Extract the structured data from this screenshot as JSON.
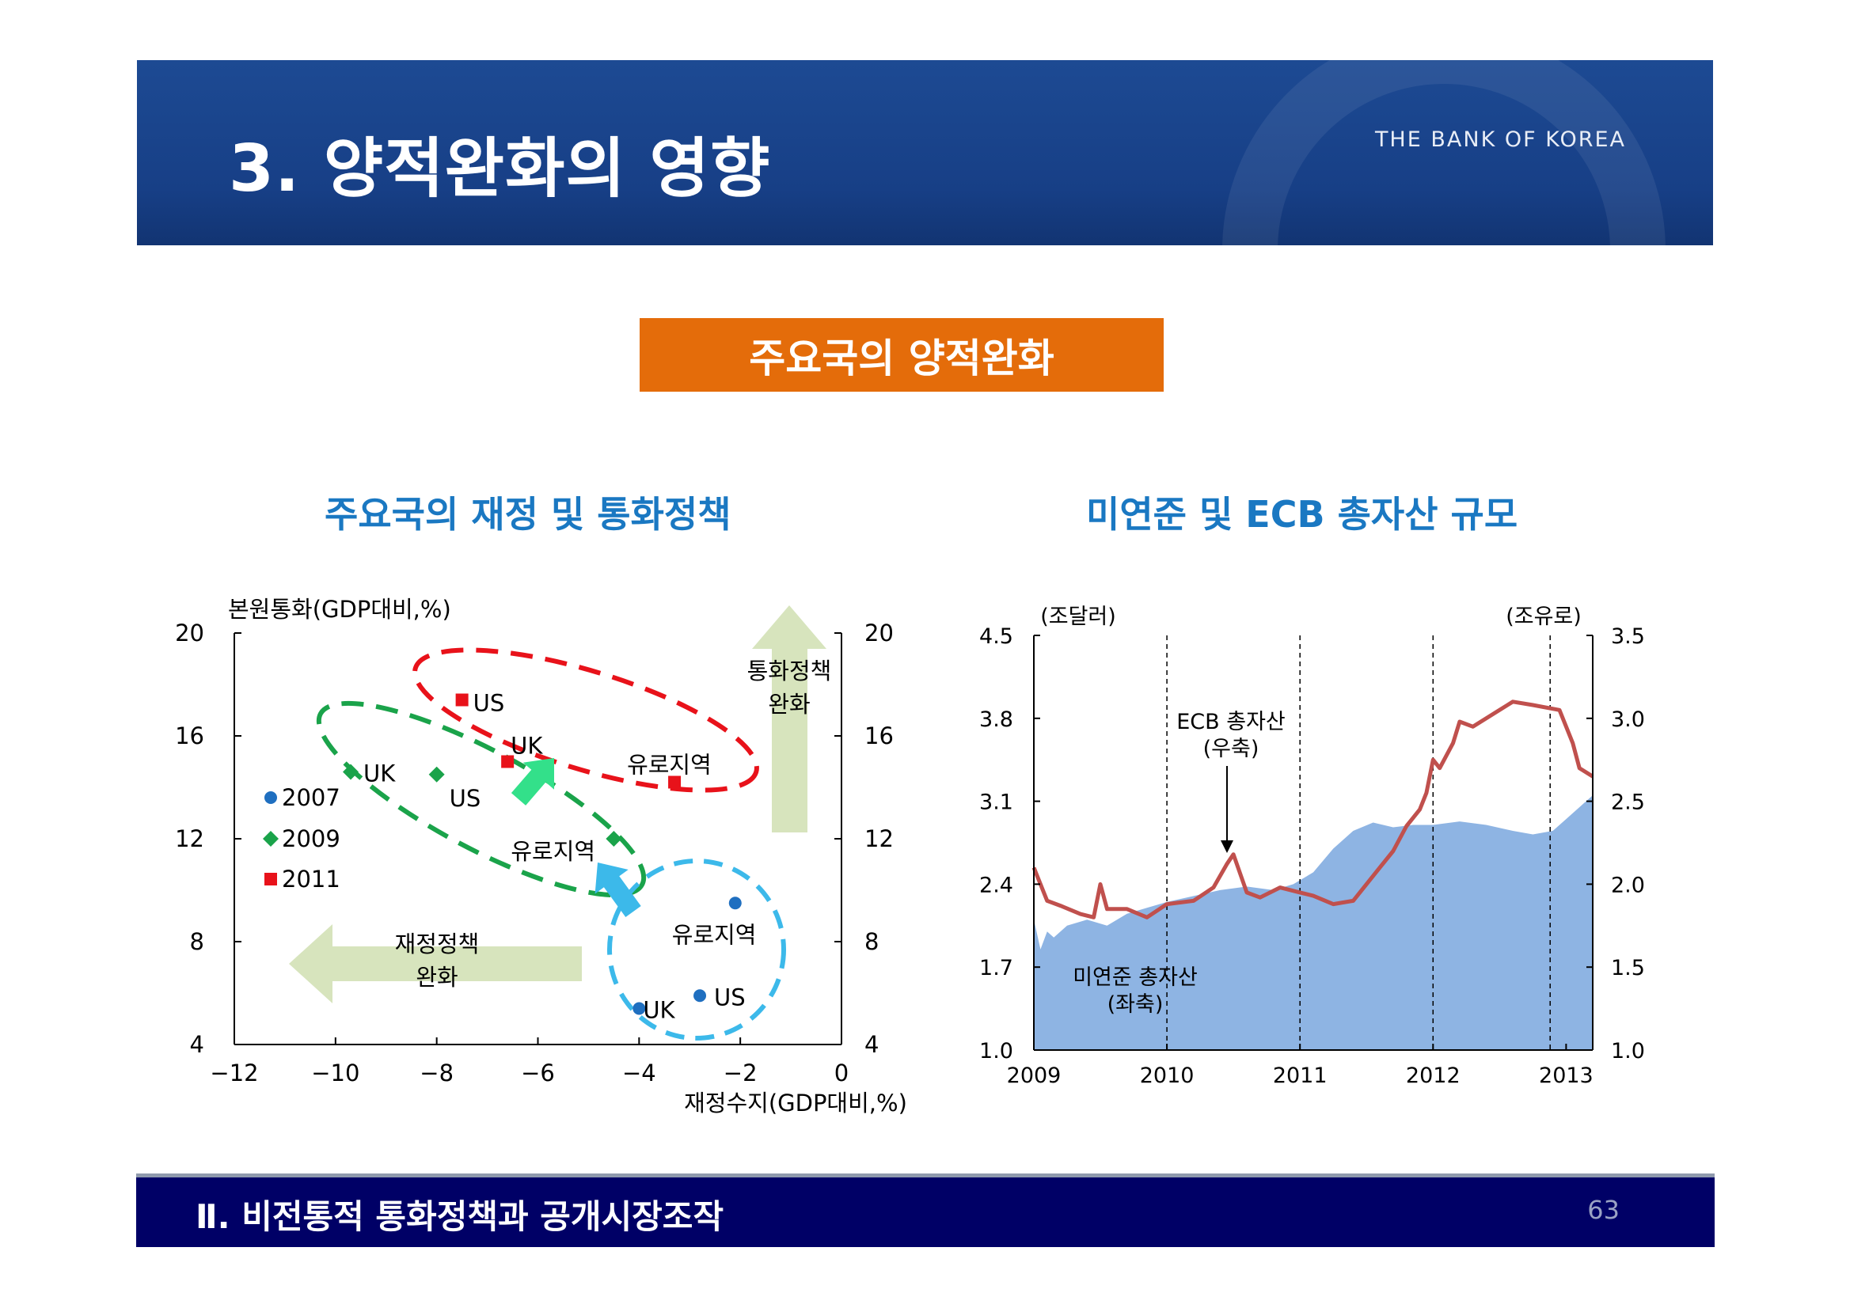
{
  "header": {
    "title": "3. 양적완화의 영향",
    "bank_name": "THE BANK OF KOREA"
  },
  "section_title": "주요국의 양적완화",
  "footer": {
    "text": "Ⅱ. 비전통적 통화정책과 공개시장조작",
    "page": "63"
  },
  "colors": {
    "header_bg": "#173f86",
    "section_bg": "#e46c0a",
    "chart_title": "#1a78c2",
    "footer_bg": "#000066",
    "y2007": "#1f6fc0",
    "y2009": "#1aa34a",
    "y2011": "#e8121a",
    "fed_area": "#8eb4e3",
    "ecb_line": "#c0504d",
    "arrow_green": "#d7e4bd",
    "arrow_small_green": "#33e08a",
    "arrow_small_blue": "#3cb9ea"
  },
  "chart_data": [
    {
      "type": "scatter",
      "title": "주요국의 재정 및 통화정책",
      "xlabel": "재정수지(GDP대비,%)",
      "ylabel": "본원통화(GDP대비,%)",
      "xlim": [
        -12,
        0
      ],
      "ylim": [
        4,
        20
      ],
      "x_ticks": [
        -12,
        -10,
        -8,
        -6,
        -4,
        -2,
        0
      ],
      "x_tick_labels": [
        "−12",
        "−10",
        "−8",
        "−6",
        "−4",
        "−2",
        "0"
      ],
      "y_ticks": [
        4,
        8,
        12,
        16,
        20
      ],
      "y_tick_labels": [
        "4",
        "8",
        "12",
        "16",
        "20"
      ],
      "y2_tick_labels": [
        "4",
        "8",
        "12",
        "16",
        "20"
      ],
      "legend": [
        "2007",
        "2009",
        "2011"
      ],
      "series": [
        {
          "name": "2007",
          "points": [
            {
              "label": "UK",
              "x": -4.0,
              "y": 5.4
            },
            {
              "label": "US",
              "x": -2.8,
              "y": 5.9
            },
            {
              "label": "유로지역",
              "x": -2.1,
              "y": 9.5
            }
          ]
        },
        {
          "name": "2009",
          "points": [
            {
              "label": "UK",
              "x": -9.7,
              "y": 14.6
            },
            {
              "label": "US",
              "x": -8.0,
              "y": 14.5
            },
            {
              "label": "유로지역",
              "x": -4.5,
              "y": 12.0
            }
          ]
        },
        {
          "name": "2011",
          "points": [
            {
              "label": "US",
              "x": -7.5,
              "y": 17.4
            },
            {
              "label": "UK",
              "x": -6.6,
              "y": 15.0
            },
            {
              "label": "유로지역",
              "x": -3.3,
              "y": 14.2
            }
          ]
        }
      ],
      "annotations": {
        "monetary_label_1": "통화정책",
        "monetary_label_2": "완화",
        "fiscal_label_1": "재정정책",
        "fiscal_label_2": "완화"
      }
    },
    {
      "type": "area",
      "title": "미연준 및 ECB 총자산 규모",
      "x_tick_labels": [
        "2009",
        "2010",
        "2011",
        "2012",
        "2013"
      ],
      "x_range": [
        2009.0,
        2013.2
      ],
      "y_left_label": "(조달러)",
      "y_right_label": "(조유로)",
      "y_left_ticks": [
        1.0,
        1.7,
        2.4,
        3.1,
        3.8,
        4.5
      ],
      "y_left_tick_labels": [
        "1.0",
        "1.7",
        "2.4",
        "3.1",
        "3.8",
        "4.5"
      ],
      "y_right_ticks": [
        1.0,
        1.5,
        2.0,
        2.5,
        3.0,
        3.5
      ],
      "y_right_tick_labels": [
        "1.0",
        "1.5",
        "2.0",
        "2.5",
        "3.0",
        "3.5"
      ],
      "ylim_left": [
        1.0,
        4.5
      ],
      "ylim_right": [
        1.0,
        3.5
      ],
      "vlines": [
        2010.0,
        2011.0,
        2012.0,
        2012.88
      ],
      "fed_label_1": "미연준 총자산",
      "fed_label_2": "(좌축)",
      "ecb_label_1": "ECB 총자산",
      "ecb_label_2": "(우축)",
      "series": [
        {
          "name": "미연준 총자산",
          "axis": "left",
          "x": [
            2009.0,
            2009.05,
            2009.1,
            2009.15,
            2009.25,
            2009.4,
            2009.55,
            2009.7,
            2009.85,
            2010.0,
            2010.2,
            2010.4,
            2010.6,
            2010.8,
            2010.95,
            2011.1,
            2011.25,
            2011.4,
            2011.55,
            2011.7,
            2011.85,
            2012.0,
            2012.2,
            2012.4,
            2012.6,
            2012.75,
            2012.9,
            2013.0,
            2013.1,
            2013.2
          ],
          "values": [
            2.1,
            1.85,
            2.0,
            1.95,
            2.05,
            2.1,
            2.05,
            2.15,
            2.2,
            2.25,
            2.3,
            2.35,
            2.38,
            2.35,
            2.4,
            2.5,
            2.7,
            2.85,
            2.92,
            2.88,
            2.9,
            2.9,
            2.93,
            2.9,
            2.85,
            2.82,
            2.85,
            2.95,
            3.05,
            3.15
          ]
        },
        {
          "name": "ECB 총자산",
          "axis": "right",
          "x": [
            2009.0,
            2009.05,
            2009.1,
            2009.2,
            2009.35,
            2009.45,
            2009.5,
            2009.55,
            2009.7,
            2009.85,
            2010.0,
            2010.2,
            2010.35,
            2010.45,
            2010.5,
            2010.6,
            2010.7,
            2010.85,
            2011.0,
            2011.1,
            2011.25,
            2011.4,
            2011.5,
            2011.6,
            2011.7,
            2011.8,
            2011.9,
            2011.95,
            2012.0,
            2012.05,
            2012.15,
            2012.2,
            2012.3,
            2012.5,
            2012.6,
            2012.75,
            2012.95,
            2013.05,
            2013.1,
            2013.2
          ],
          "values": [
            2.1,
            2.0,
            1.9,
            1.87,
            1.82,
            1.8,
            2.0,
            1.85,
            1.85,
            1.8,
            1.88,
            1.9,
            1.98,
            2.12,
            2.18,
            1.95,
            1.92,
            1.98,
            1.95,
            1.93,
            1.88,
            1.9,
            2.0,
            2.1,
            2.2,
            2.35,
            2.45,
            2.55,
            2.75,
            2.7,
            2.85,
            2.98,
            2.95,
            3.05,
            3.1,
            3.08,
            3.05,
            2.85,
            2.7,
            2.65
          ]
        }
      ]
    }
  ]
}
